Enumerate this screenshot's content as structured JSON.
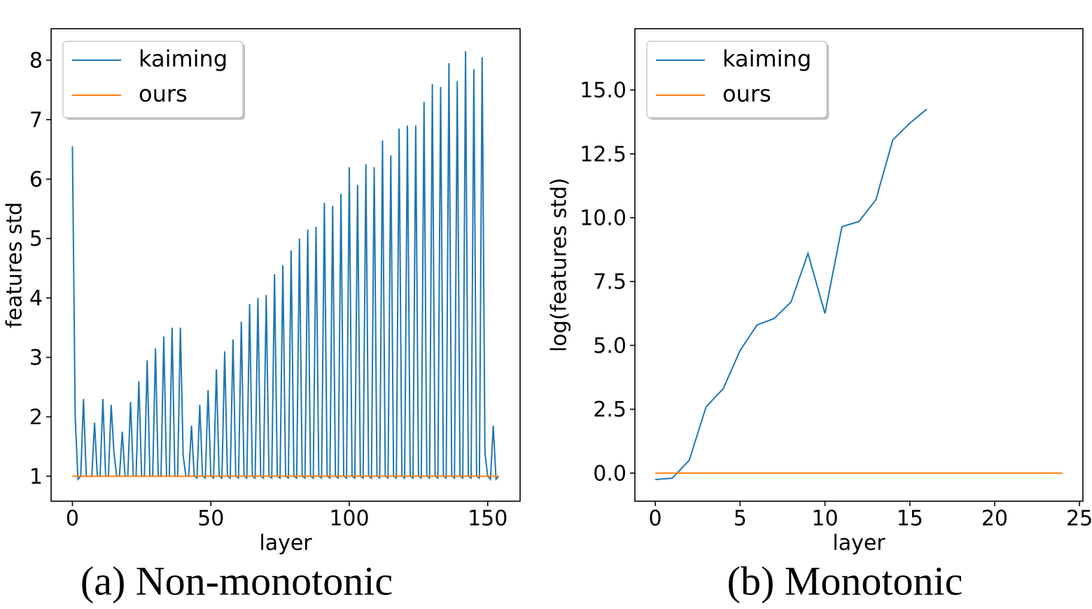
{
  "chart_data": [
    {
      "type": "line",
      "caption": "(a) Non-monotonic",
      "xlabel": "layer",
      "ylabel": "features std",
      "xlim": [
        -7.7,
        161.7
      ],
      "ylim": [
        0.58,
        8.53
      ],
      "xticks": [
        0,
        50,
        100,
        150
      ],
      "yticks": [
        1,
        2,
        3,
        4,
        5,
        6,
        7,
        8
      ],
      "legend": "upper left",
      "x": [
        0,
        1,
        2,
        3,
        4,
        5,
        6,
        7,
        8,
        9,
        10,
        11,
        12,
        13,
        14,
        15,
        16,
        17,
        18,
        19,
        20,
        21,
        22,
        23,
        24,
        25,
        26,
        27,
        28,
        29,
        30,
        31,
        32,
        33,
        34,
        35,
        36,
        37,
        38,
        39,
        40,
        41,
        42,
        43,
        44,
        45,
        46,
        47,
        48,
        49,
        50,
        51,
        52,
        53,
        54,
        55,
        56,
        57,
        58,
        59,
        60,
        61,
        62,
        63,
        64,
        65,
        66,
        67,
        68,
        69,
        70,
        71,
        72,
        73,
        74,
        75,
        76,
        77,
        78,
        79,
        80,
        81,
        82,
        83,
        84,
        85,
        86,
        87,
        88,
        89,
        90,
        91,
        92,
        93,
        94,
        95,
        96,
        97,
        98,
        99,
        100,
        101,
        102,
        103,
        104,
        105,
        106,
        107,
        108,
        109,
        110,
        111,
        112,
        113,
        114,
        115,
        116,
        117,
        118,
        119,
        120,
        121,
        122,
        123,
        124,
        125,
        126,
        127,
        128,
        129,
        130,
        131,
        132,
        133,
        134,
        135,
        136,
        137,
        138,
        139,
        140,
        141,
        142,
        143,
        144,
        145,
        146,
        147,
        148,
        149,
        150,
        151,
        152,
        153,
        154
      ],
      "series": [
        {
          "name": "kaiming",
          "color": "#1f77b4",
          "values": [
            6.55,
            2.0,
            0.95,
            1.0,
            2.3,
            1.0,
            1.0,
            1.0,
            1.9,
            1.0,
            1.0,
            2.3,
            1.0,
            1.0,
            2.2,
            1.4,
            1.0,
            1.0,
            1.75,
            1.0,
            1.0,
            2.25,
            1.0,
            1.0,
            2.6,
            1.0,
            1.0,
            2.95,
            1.0,
            1.0,
            3.15,
            1.0,
            1.0,
            3.35,
            1.0,
            1.0,
            3.5,
            1.0,
            1.0,
            3.5,
            1.35,
            1.0,
            1.0,
            1.85,
            1.0,
            0.97,
            2.2,
            1.0,
            0.97,
            2.45,
            1.0,
            0.97,
            2.8,
            1.0,
            0.97,
            3.1,
            1.0,
            0.97,
            3.3,
            1.0,
            0.97,
            3.6,
            1.0,
            0.97,
            3.9,
            1.0,
            0.97,
            4.0,
            1.0,
            0.97,
            4.05,
            1.0,
            0.97,
            4.4,
            1.0,
            0.97,
            4.55,
            1.0,
            0.97,
            4.8,
            1.0,
            0.97,
            5.0,
            1.0,
            0.97,
            5.15,
            1.0,
            0.97,
            5.2,
            1.0,
            0.97,
            5.6,
            1.0,
            0.97,
            5.55,
            1.0,
            0.97,
            5.75,
            1.0,
            0.97,
            6.2,
            1.0,
            0.97,
            5.9,
            1.0,
            0.97,
            6.25,
            1.0,
            0.97,
            6.2,
            1.0,
            0.97,
            6.65,
            1.0,
            0.97,
            6.4,
            1.0,
            0.97,
            6.85,
            1.0,
            0.97,
            6.9,
            1.0,
            0.97,
            6.9,
            1.0,
            0.97,
            7.3,
            1.0,
            0.97,
            7.6,
            1.0,
            0.97,
            7.55,
            1.0,
            0.97,
            7.95,
            1.0,
            0.97,
            7.65,
            1.0,
            0.97,
            8.15,
            1.0,
            0.97,
            7.85,
            1.0,
            0.97,
            8.05,
            1.4,
            1.0,
            0.95,
            1.85,
            0.95,
            1.0
          ]
        },
        {
          "name": "ours",
          "color": "#ff7f0e",
          "values": [
            1,
            1,
            1,
            1,
            1,
            1,
            1,
            1,
            1,
            1,
            1,
            1,
            1,
            1,
            1,
            1,
            1,
            1,
            1,
            1,
            1,
            1,
            1,
            1,
            1,
            1,
            1,
            1,
            1,
            1,
            1,
            1,
            1,
            1,
            1,
            1,
            1,
            1,
            1,
            1,
            1,
            1,
            1,
            1,
            1,
            1,
            1,
            1,
            1,
            1,
            1,
            1,
            1,
            1,
            1,
            1,
            1,
            1,
            1,
            1,
            1,
            1,
            1,
            1,
            1,
            1,
            1,
            1,
            1,
            1,
            1,
            1,
            1,
            1,
            1,
            1,
            1,
            1,
            1,
            1,
            1,
            1,
            1,
            1,
            1,
            1,
            1,
            1,
            1,
            1,
            1,
            1,
            1,
            1,
            1,
            1,
            1,
            1,
            1,
            1,
            1,
            1,
            1,
            1,
            1,
            1,
            1,
            1,
            1,
            1,
            1,
            1,
            1,
            1,
            1,
            1,
            1,
            1,
            1,
            1,
            1,
            1,
            1,
            1,
            1,
            1,
            1,
            1,
            1,
            1,
            1,
            1,
            1,
            1,
            1,
            1,
            1,
            1,
            1,
            1,
            1,
            1,
            1,
            1,
            1,
            1,
            1,
            1,
            1,
            1,
            1,
            1,
            1,
            1,
            1
          ]
        }
      ]
    },
    {
      "type": "line",
      "caption": "(b) Monotonic",
      "xlabel": "layer",
      "ylabel": "log(features std)",
      "xlim": [
        -1.2,
        25.2
      ],
      "ylim": [
        -1.1,
        17.4
      ],
      "xticks": [
        0,
        5,
        10,
        15,
        20,
        25
      ],
      "yticks": [
        {
          "value": 0,
          "label": "0.0"
        },
        2.5,
        {
          "value": 5,
          "label": "5.0"
        },
        7.5,
        {
          "value": 10,
          "label": "10.0"
        },
        12.5,
        {
          "value": 15,
          "label": "15.0"
        }
      ],
      "legend": "upper left",
      "x": [
        0,
        1,
        2,
        3,
        4,
        5,
        6,
        7,
        8,
        9,
        10,
        11,
        12,
        13,
        14,
        15,
        16,
        17,
        18,
        19,
        20,
        21,
        22,
        23,
        24
      ],
      "series": [
        {
          "name": "kaiming",
          "color": "#1f77b4",
          "values": [
            -0.25,
            -0.2,
            0.5,
            2.6,
            3.3,
            4.8,
            5.8,
            6.05,
            6.7,
            8.6,
            6.25,
            9.65,
            9.85,
            10.7,
            13.05,
            13.7,
            14.25,
            null,
            null,
            null,
            null,
            null,
            null,
            null,
            null
          ]
        },
        {
          "name": "ours",
          "color": "#ff7f0e",
          "values": [
            0,
            0,
            0,
            0,
            0,
            0,
            0,
            0,
            0,
            0,
            0,
            0,
            0,
            0,
            0,
            0,
            0,
            0,
            0,
            0,
            0,
            0,
            0,
            0,
            0
          ]
        }
      ]
    }
  ]
}
